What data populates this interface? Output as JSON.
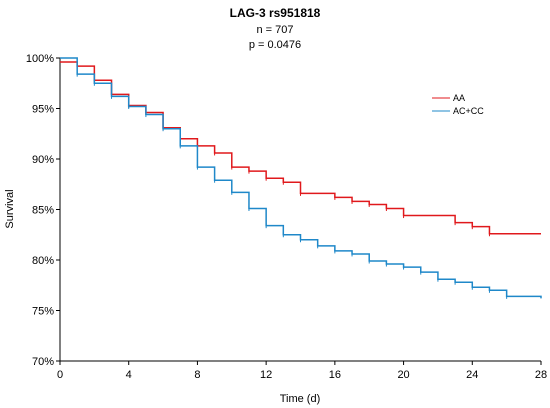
{
  "chart_data": {
    "type": "line",
    "title": "LAG-3 rs951818",
    "subtitle_lines": [
      "n = 707",
      "p = 0.0476"
    ],
    "xlabel": "Time (d)",
    "ylabel": "Survival",
    "xlim": [
      0,
      28
    ],
    "ylim": [
      70,
      100
    ],
    "x_ticks": [
      0,
      4,
      8,
      12,
      16,
      20,
      24,
      28
    ],
    "y_ticks": [
      70,
      75,
      80,
      85,
      90,
      95,
      100
    ],
    "y_tick_labels": [
      "70%",
      "75%",
      "80%",
      "85%",
      "90%",
      "95%",
      "100%"
    ],
    "grid": false,
    "legend_position": "top-right",
    "series": [
      {
        "name": "AA",
        "color": "#e0191c",
        "step": true,
        "x": [
          0,
          1,
          2,
          3,
          4,
          5,
          6,
          7,
          8,
          9,
          10,
          11,
          12,
          13,
          14,
          16,
          17,
          18,
          19,
          20,
          23,
          24,
          25,
          28
        ],
        "y": [
          99.6,
          99.2,
          97.8,
          96.4,
          95.3,
          94.6,
          93.1,
          92.0,
          91.3,
          90.6,
          89.2,
          88.8,
          88.1,
          87.7,
          86.6,
          86.2,
          85.8,
          85.5,
          85.1,
          84.4,
          83.7,
          83.3,
          82.6,
          82.6
        ]
      },
      {
        "name": "AC+CC",
        "color": "#1f88c9",
        "step": true,
        "x": [
          0,
          1,
          2,
          3,
          4,
          5,
          6,
          7,
          8,
          9,
          10,
          11,
          12,
          13,
          14,
          15,
          16,
          17,
          18,
          19,
          20,
          21,
          22,
          23,
          24,
          25,
          26,
          28
        ],
        "y": [
          100,
          98.4,
          97.5,
          96.2,
          95.2,
          94.4,
          93.0,
          91.3,
          89.2,
          87.9,
          86.7,
          85.1,
          83.4,
          82.5,
          82.0,
          81.4,
          80.9,
          80.6,
          79.9,
          79.6,
          79.3,
          78.8,
          78.1,
          77.8,
          77.3,
          77.0,
          76.4,
          76.2
        ]
      }
    ]
  }
}
